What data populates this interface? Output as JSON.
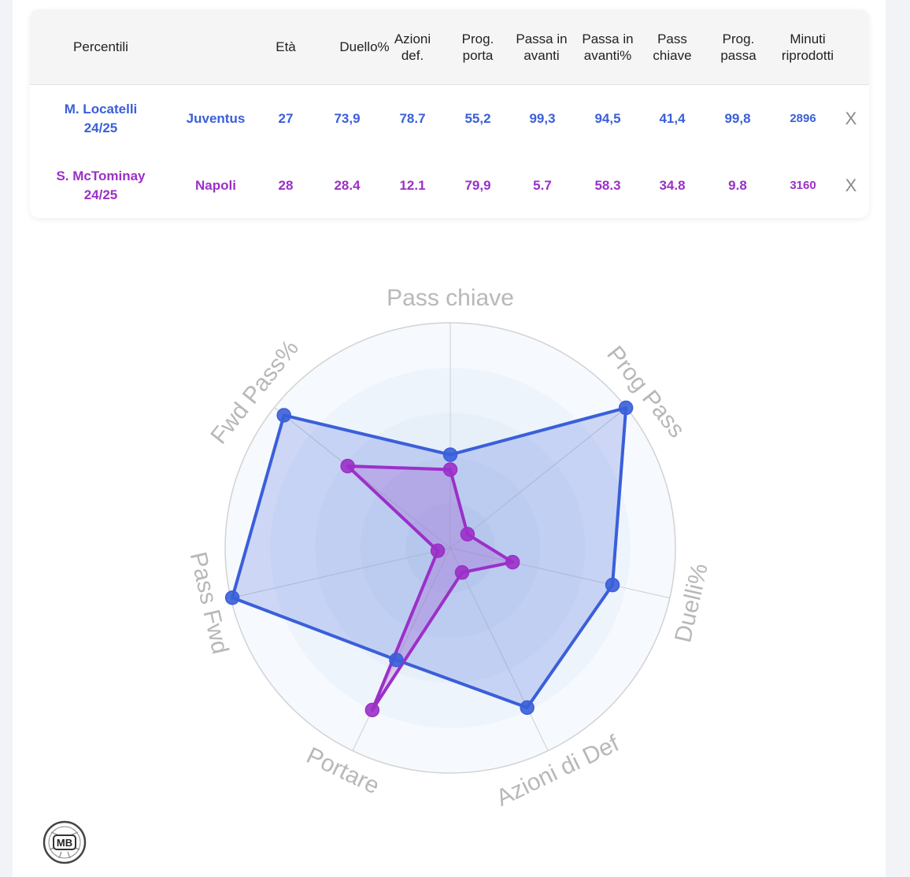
{
  "table": {
    "headers": {
      "label": "Percentili",
      "age": "Età",
      "duels": "Duello%",
      "def_actions": "Azioni def.",
      "prog_carry": "Prog. porta",
      "fwd_pass": "Passa in avanti",
      "fwd_pass_pct": "Passa in avanti%",
      "key_pass": "Pass chiave",
      "prog_pass": "Prog. passa",
      "minutes": "Minuti riprodotti"
    },
    "remove_label": "X",
    "players": [
      {
        "name": "M. Locatelli",
        "season": "24/25",
        "team": "Juventus",
        "age": "27",
        "duels": "73,9",
        "def_actions": "78.7",
        "prog_carry": "55,2",
        "fwd_pass": "99,3",
        "fwd_pass_pct": "94,5",
        "key_pass": "41,4",
        "prog_pass": "99,8",
        "minutes": "2896",
        "color": "#3a5fd9"
      },
      {
        "name": "S. McTominay",
        "season": "24/25",
        "team": "Napoli",
        "age": "28",
        "duels": "28.4",
        "def_actions": "12.1",
        "prog_carry": "79,9",
        "fwd_pass": "5.7",
        "fwd_pass_pct": "58.3",
        "key_pass": "34.8",
        "prog_pass": "9.8",
        "minutes": "3160",
        "color": "#9b30c8"
      }
    ]
  },
  "chart_data": {
    "type": "radar",
    "axes": [
      "Pass chiave",
      "Prog Pass",
      "Duelli%",
      "Azioni di Def",
      "Portare",
      "Pass Fwd",
      "Fwd Pass%"
    ],
    "range": [
      0,
      100
    ],
    "series": [
      {
        "name": "M. Locatelli 24/25",
        "color": "#3a5fd9",
        "values": [
          41.4,
          99.8,
          73.9,
          78.7,
          55.2,
          99.3,
          94.5
        ]
      },
      {
        "name": "S. McTominay 24/25",
        "color": "#9b30c8",
        "values": [
          34.8,
          9.8,
          28.4,
          12.1,
          79.9,
          5.7,
          58.3
        ]
      }
    ]
  },
  "logo": {
    "text": "MB"
  }
}
